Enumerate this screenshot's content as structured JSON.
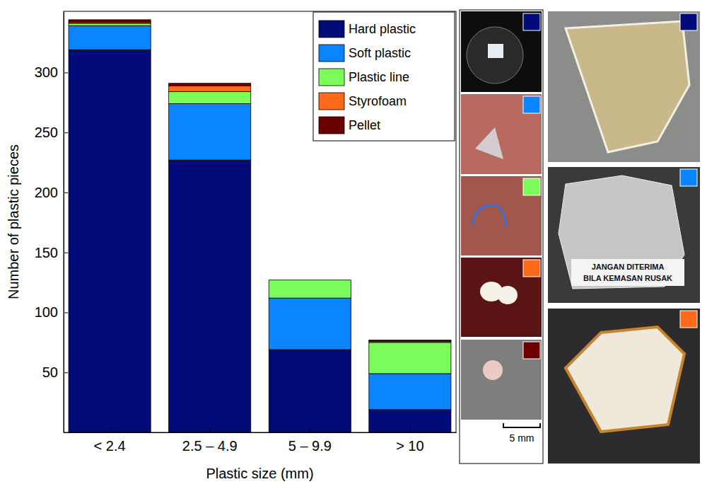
{
  "chart_data": {
    "type": "bar",
    "stacked": true,
    "x_label": "Plastic size (mm)",
    "y_label": "Number of plastic pieces",
    "categories": [
      "< 2.4",
      "2.5 – 4.9",
      "5 – 9.9",
      "> 10"
    ],
    "series": [
      {
        "name": "Hard plastic",
        "color": "#000b7a",
        "values": [
          319,
          227,
          69,
          19
        ]
      },
      {
        "name": "Soft plastic",
        "color": "#0a84ff",
        "values": [
          20,
          47,
          43,
          30
        ]
      },
      {
        "name": "Plastic line",
        "color": "#7cfc5a",
        "values": [
          2,
          10,
          15,
          26
        ]
      },
      {
        "name": "Styrofoam",
        "color": "#ff6a1a",
        "values": [
          1,
          5,
          0,
          1
        ]
      },
      {
        "name": "Pellet",
        "color": "#6b0000",
        "values": [
          2,
          2,
          0,
          1
        ]
      }
    ],
    "ylim": [
      0,
      351
    ],
    "yticks": [
      50,
      100,
      150,
      200,
      250,
      300
    ],
    "grid": false,
    "legend": "upper right",
    "annotations": [
      "5 mm",
      "JANGAN DITERIMA",
      "BILA KEMASAN RUSAK"
    ]
  }
}
